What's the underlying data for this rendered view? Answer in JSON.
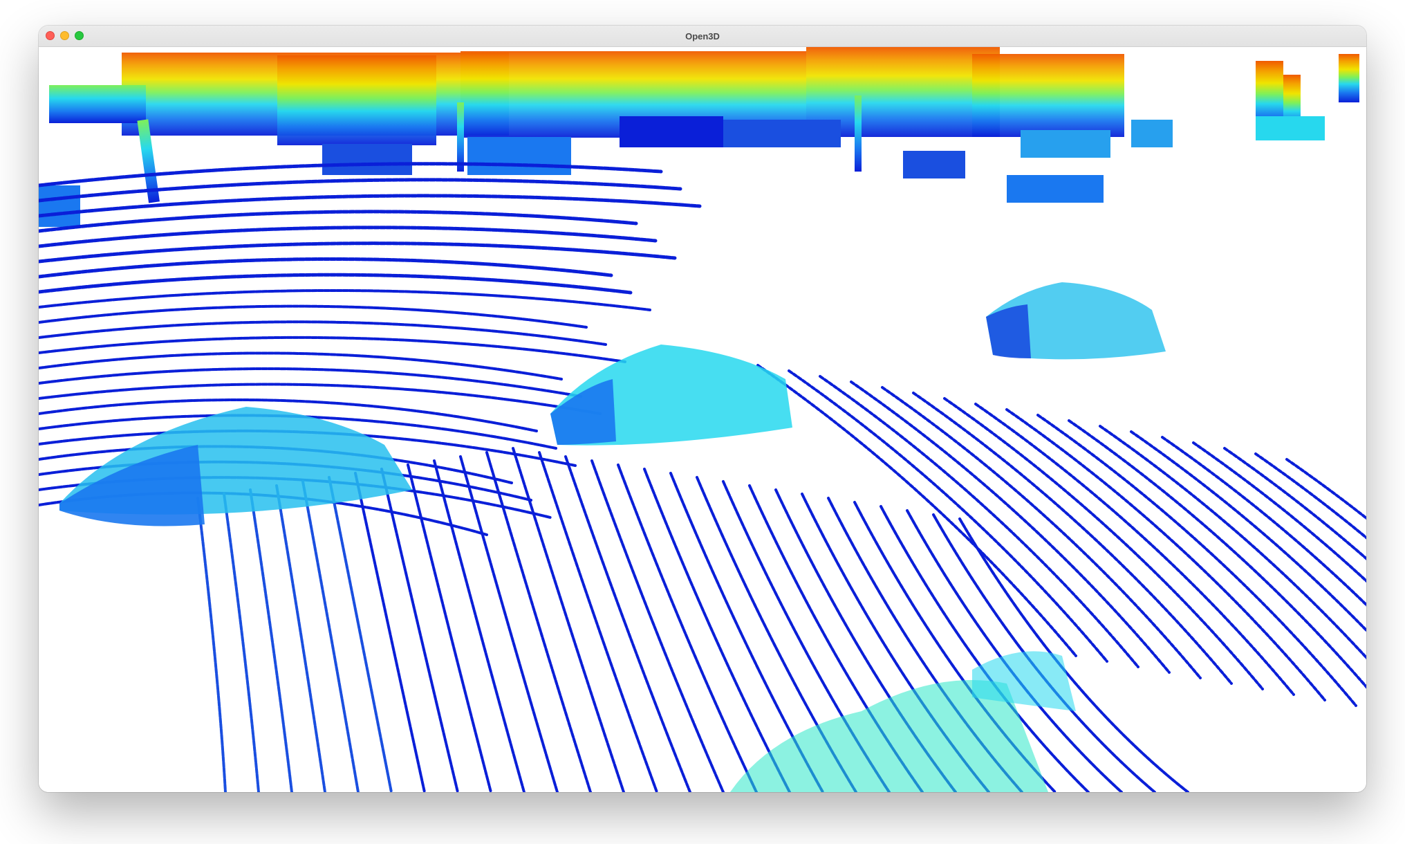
{
  "window": {
    "title": "Open3D",
    "controls": [
      "close",
      "minimize",
      "zoom"
    ]
  },
  "viewport": {
    "content": "lidar-point-cloud",
    "background_color": "#ffffff",
    "colormap": "jet",
    "colors": {
      "low": "#0a1fd8",
      "mid_low": "#1a78f0",
      "mid": "#27d8ee",
      "mid_high": "#f0e400",
      "high": "#f05a00"
    }
  }
}
